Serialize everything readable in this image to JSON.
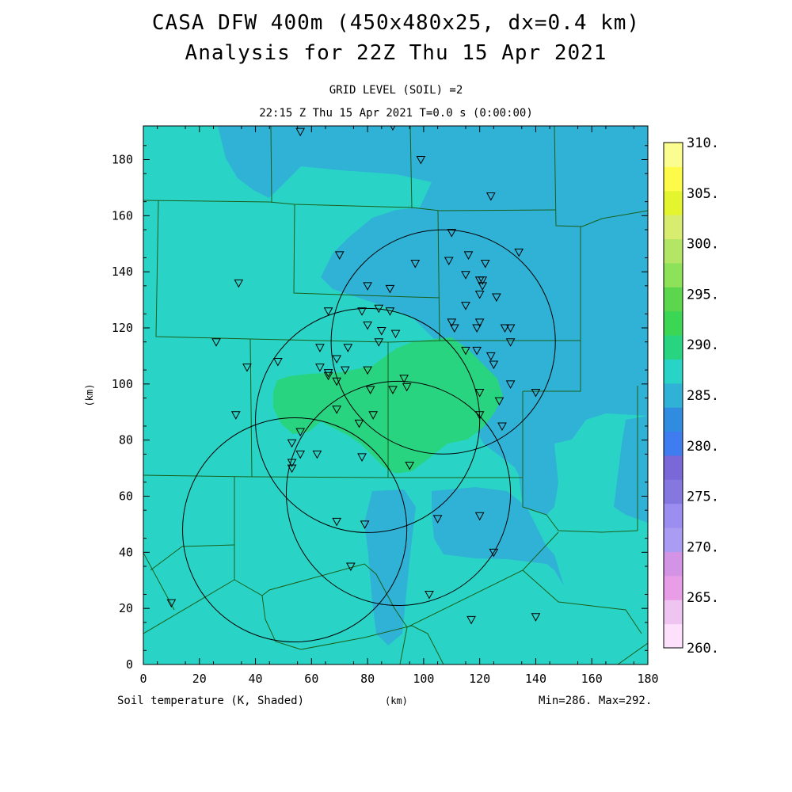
{
  "title": {
    "line1": "CASA DFW 400m (450x480x25, dx=0.4 km)",
    "line2": "Analysis for 22Z Thu 15 Apr 2021"
  },
  "subtitle": {
    "level": "GRID LEVEL (SOIL) =2",
    "time": "22:15 Z Thu 15 Apr 2021   T=0.0 s (0:00:00)"
  },
  "axes": {
    "xlabel": "(km)",
    "ylabel": "(km)",
    "x_ticks": [
      "0",
      "20",
      "40",
      "60",
      "80",
      "100",
      "120",
      "140",
      "160",
      "180"
    ],
    "y_ticks": [
      "0",
      "20",
      "40",
      "60",
      "80",
      "100",
      "120",
      "140",
      "160",
      "180"
    ],
    "x_range": [
      0,
      180
    ],
    "y_range": [
      0,
      192
    ]
  },
  "colorbar": {
    "labels": [
      "260.",
      "265.",
      "270.",
      "275.",
      "280.",
      "285.",
      "290.",
      "295.",
      "300.",
      "305.",
      "310."
    ],
    "colors": [
      "#fde0fc",
      "#f0c4f0",
      "#e79ee7",
      "#d494e6",
      "#a99cf2",
      "#9c8ef0",
      "#8577e0",
      "#7b68d8",
      "#3e7cf0",
      "#2f8ce0",
      "#30b2d6",
      "#29d4c6",
      "#29d480",
      "#3ad654",
      "#5cd64c",
      "#8ee25a",
      "#b2e664",
      "#d8ec70",
      "#e4f42e",
      "#fdfa4a",
      "#fcfd90"
    ]
  },
  "map_colors": {
    "teal": "#29d4c6",
    "blue": "#30b2d6",
    "green": "#29d480",
    "border": "#1a5e1a"
  },
  "footer": {
    "left": "Soil temperature (K, Shaded)",
    "middle": "(km)",
    "right": "Min=286. Max=292."
  },
  "radars": [
    {
      "x": 107,
      "y": 115,
      "r": 40
    },
    {
      "x": 80,
      "y": 87,
      "r": 40
    },
    {
      "x": 91,
      "y": 61,
      "r": 40
    },
    {
      "x": 54,
      "y": 48,
      "r": 40
    }
  ],
  "stations": [
    [
      56,
      190
    ],
    [
      89,
      192
    ],
    [
      99,
      180
    ],
    [
      124,
      167
    ],
    [
      110,
      154
    ],
    [
      134,
      147
    ],
    [
      116,
      146
    ],
    [
      70,
      146
    ],
    [
      97,
      143
    ],
    [
      109,
      144
    ],
    [
      122,
      143
    ],
    [
      115,
      139
    ],
    [
      120,
      137
    ],
    [
      121,
      137
    ],
    [
      121,
      135
    ],
    [
      120,
      132
    ],
    [
      126,
      131
    ],
    [
      34,
      136
    ],
    [
      80,
      135
    ],
    [
      88,
      134
    ],
    [
      115,
      128
    ],
    [
      84,
      127
    ],
    [
      78,
      126
    ],
    [
      88,
      126
    ],
    [
      66,
      126
    ],
    [
      120,
      122
    ],
    [
      110,
      122
    ],
    [
      119,
      120
    ],
    [
      111,
      120
    ],
    [
      129,
      120
    ],
    [
      131,
      120
    ],
    [
      80,
      121
    ],
    [
      85,
      119
    ],
    [
      90,
      118
    ],
    [
      84,
      115
    ],
    [
      131,
      115
    ],
    [
      26,
      115
    ],
    [
      119,
      112
    ],
    [
      115,
      112
    ],
    [
      124,
      110
    ],
    [
      125,
      107
    ],
    [
      63,
      113
    ],
    [
      73,
      113
    ],
    [
      69,
      109
    ],
    [
      48,
      108
    ],
    [
      63,
      106
    ],
    [
      37,
      106
    ],
    [
      66,
      104
    ],
    [
      72,
      105
    ],
    [
      80,
      105
    ],
    [
      66,
      103
    ],
    [
      69,
      101
    ],
    [
      93,
      102
    ],
    [
      131,
      100
    ],
    [
      94,
      99
    ],
    [
      140,
      97
    ],
    [
      89,
      98
    ],
    [
      81,
      98
    ],
    [
      120,
      97
    ],
    [
      127,
      94
    ],
    [
      69,
      91
    ],
    [
      33,
      89
    ],
    [
      82,
      89
    ],
    [
      120,
      89
    ],
    [
      77,
      86
    ],
    [
      128,
      85
    ],
    [
      56,
      83
    ],
    [
      53,
      79
    ],
    [
      56,
      75
    ],
    [
      62,
      75
    ],
    [
      78,
      74
    ],
    [
      95,
      71
    ],
    [
      53,
      72
    ],
    [
      53,
      70
    ],
    [
      120,
      53
    ],
    [
      105,
      52
    ],
    [
      69,
      51
    ],
    [
      79,
      50
    ],
    [
      125,
      40
    ],
    [
      74,
      35
    ],
    [
      102,
      25
    ],
    [
      10,
      22
    ],
    [
      117,
      16
    ],
    [
      140,
      17
    ]
  ]
}
